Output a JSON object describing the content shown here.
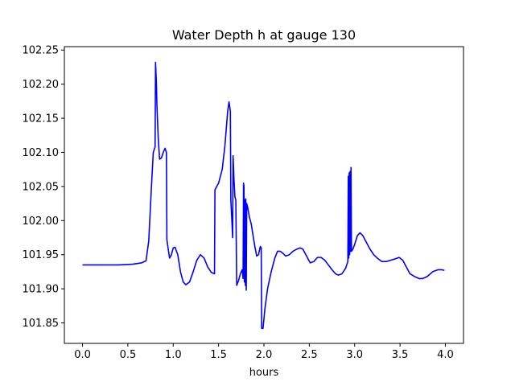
{
  "chart_data": {
    "type": "line",
    "title": "Water Depth h at gauge 130",
    "xlabel": "hours",
    "ylabel": "",
    "xlim": [
      -0.2,
      4.2
    ],
    "ylim": [
      101.82,
      102.255
    ],
    "x_ticks": [
      0.0,
      0.5,
      1.0,
      1.5,
      2.0,
      2.5,
      3.0,
      3.5,
      4.0
    ],
    "x_tick_labels": [
      "0.0",
      "0.5",
      "1.0",
      "1.5",
      "2.0",
      "2.5",
      "3.0",
      "3.5",
      "4.0"
    ],
    "y_ticks": [
      101.85,
      101.9,
      101.95,
      102.0,
      102.05,
      102.1,
      102.15,
      102.2,
      102.25
    ],
    "y_tick_labels": [
      "101.85",
      "101.90",
      "101.95",
      "102.00",
      "102.05",
      "102.10",
      "102.15",
      "102.20",
      "102.25"
    ],
    "grid": false,
    "series": [
      {
        "color": "#0000ff",
        "points": [
          [
            0.0,
            101.935
          ],
          [
            0.2,
            101.935
          ],
          [
            0.4,
            101.935
          ],
          [
            0.55,
            101.936
          ],
          [
            0.65,
            101.938
          ],
          [
            0.7,
            101.941
          ],
          [
            0.73,
            101.97
          ],
          [
            0.76,
            102.05
          ],
          [
            0.78,
            102.1
          ],
          [
            0.8,
            102.108
          ],
          [
            0.805,
            102.232
          ],
          [
            0.815,
            102.2
          ],
          [
            0.82,
            102.17
          ],
          [
            0.835,
            102.12
          ],
          [
            0.85,
            102.09
          ],
          [
            0.87,
            102.092
          ],
          [
            0.89,
            102.1
          ],
          [
            0.91,
            102.106
          ],
          [
            0.925,
            102.1
          ],
          [
            0.93,
            101.972
          ],
          [
            0.945,
            101.958
          ],
          [
            0.96,
            101.945
          ],
          [
            0.98,
            101.95
          ],
          [
            1.0,
            101.96
          ],
          [
            1.02,
            101.961
          ],
          [
            1.05,
            101.95
          ],
          [
            1.08,
            101.925
          ],
          [
            1.11,
            101.91
          ],
          [
            1.14,
            101.906
          ],
          [
            1.18,
            101.91
          ],
          [
            1.22,
            101.925
          ],
          [
            1.26,
            101.942
          ],
          [
            1.3,
            101.95
          ],
          [
            1.34,
            101.945
          ],
          [
            1.38,
            101.932
          ],
          [
            1.42,
            101.924
          ],
          [
            1.455,
            101.922
          ],
          [
            1.46,
            102.045
          ],
          [
            1.5,
            102.055
          ],
          [
            1.54,
            102.075
          ],
          [
            1.57,
            102.11
          ],
          [
            1.6,
            102.16
          ],
          [
            1.615,
            102.174
          ],
          [
            1.63,
            102.16
          ],
          [
            1.635,
            102.03
          ],
          [
            1.645,
            102.005
          ],
          [
            1.655,
            101.975
          ],
          [
            1.66,
            102.095
          ],
          [
            1.67,
            102.06
          ],
          [
            1.68,
            102.035
          ],
          [
            1.69,
            102.03
          ],
          [
            1.7,
            101.905
          ],
          [
            1.72,
            101.912
          ],
          [
            1.74,
            101.922
          ],
          [
            1.76,
            101.928
          ],
          [
            1.77,
            101.915
          ],
          [
            1.775,
            102.055
          ],
          [
            1.78,
            102.05
          ],
          [
            1.785,
            101.91
          ],
          [
            1.79,
            102.03
          ],
          [
            1.795,
            101.905
          ],
          [
            1.8,
            102.032
          ],
          [
            1.805,
            101.898
          ],
          [
            1.81,
            102.025
          ],
          [
            1.82,
            102.02
          ],
          [
            1.84,
            102.005
          ],
          [
            1.86,
            101.995
          ],
          [
            1.88,
            101.978
          ],
          [
            1.9,
            101.962
          ],
          [
            1.92,
            101.948
          ],
          [
            1.94,
            101.95
          ],
          [
            1.96,
            101.962
          ],
          [
            1.97,
            101.96
          ],
          [
            1.975,
            101.842
          ],
          [
            1.99,
            101.842
          ],
          [
            2.01,
            101.87
          ],
          [
            2.04,
            101.9
          ],
          [
            2.08,
            101.925
          ],
          [
            2.12,
            101.945
          ],
          [
            2.15,
            101.955
          ],
          [
            2.18,
            101.955
          ],
          [
            2.21,
            101.952
          ],
          [
            2.24,
            101.948
          ],
          [
            2.28,
            101.95
          ],
          [
            2.32,
            101.955
          ],
          [
            2.36,
            101.958
          ],
          [
            2.4,
            101.96
          ],
          [
            2.43,
            101.958
          ],
          [
            2.47,
            101.948
          ],
          [
            2.51,
            101.938
          ],
          [
            2.55,
            101.94
          ],
          [
            2.59,
            101.946
          ],
          [
            2.63,
            101.946
          ],
          [
            2.67,
            101.942
          ],
          [
            2.71,
            101.935
          ],
          [
            2.75,
            101.928
          ],
          [
            2.79,
            101.922
          ],
          [
            2.82,
            101.92
          ],
          [
            2.86,
            101.922
          ],
          [
            2.9,
            101.93
          ],
          [
            2.925,
            101.94
          ],
          [
            2.93,
            102.065
          ],
          [
            2.935,
            101.945
          ],
          [
            2.94,
            102.07
          ],
          [
            2.945,
            101.95
          ],
          [
            2.95,
            102.072
          ],
          [
            2.955,
            101.955
          ],
          [
            2.96,
            102.078
          ],
          [
            2.965,
            101.955
          ],
          [
            2.98,
            101.958
          ],
          [
            3.0,
            101.965
          ],
          [
            3.03,
            101.978
          ],
          [
            3.06,
            101.982
          ],
          [
            3.09,
            101.978
          ],
          [
            3.13,
            101.968
          ],
          [
            3.17,
            101.958
          ],
          [
            3.21,
            101.95
          ],
          [
            3.25,
            101.945
          ],
          [
            3.3,
            101.94
          ],
          [
            3.35,
            101.94
          ],
          [
            3.4,
            101.942
          ],
          [
            3.45,
            101.944
          ],
          [
            3.49,
            101.946
          ],
          [
            3.53,
            101.942
          ],
          [
            3.57,
            101.932
          ],
          [
            3.61,
            101.922
          ],
          [
            3.66,
            101.918
          ],
          [
            3.71,
            101.915
          ],
          [
            3.75,
            101.915
          ],
          [
            3.8,
            101.918
          ],
          [
            3.86,
            101.925
          ],
          [
            3.92,
            101.928
          ],
          [
            3.96,
            101.928
          ],
          [
            3.99,
            101.927
          ]
        ]
      }
    ]
  }
}
